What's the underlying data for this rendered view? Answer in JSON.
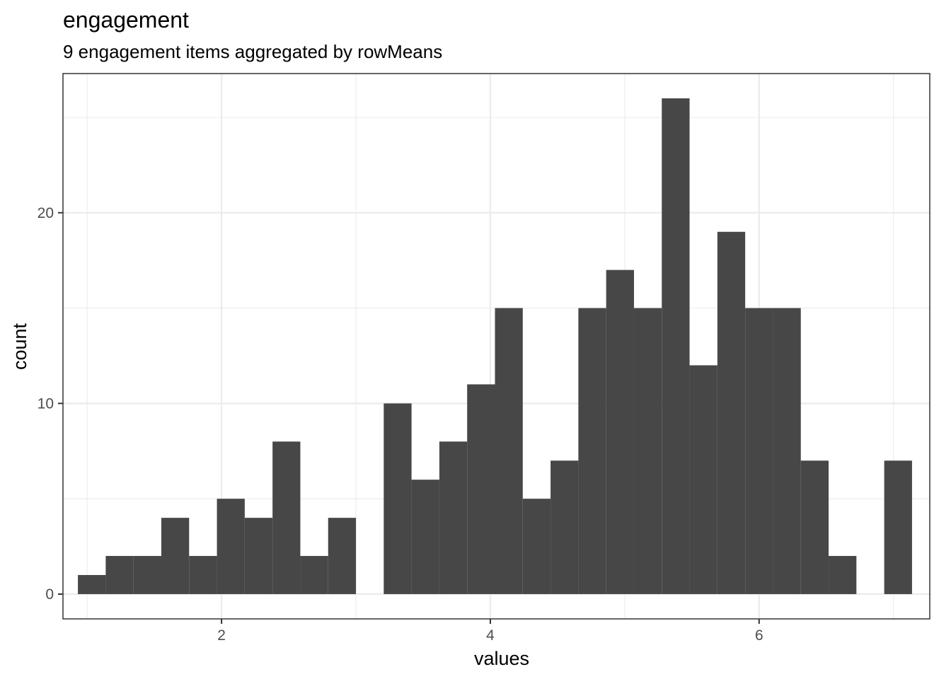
{
  "chart_data": {
    "type": "histogram",
    "title": "engagement",
    "subtitle": "9 engagement items aggregated by rowMeans",
    "xlabel": "values",
    "ylabel": "count",
    "xlim": [
      0.82,
      7.27
    ],
    "ylim": [
      -1.3,
      27.3
    ],
    "x_ticks": [
      2,
      4,
      6
    ],
    "y_ticks": [
      0,
      10,
      20
    ],
    "x_minor": [
      1,
      3,
      5,
      7
    ],
    "y_minor": [
      5,
      15,
      25
    ],
    "grid": true,
    "bin_width": 0.2069,
    "bins": [
      {
        "x": 1.0345,
        "count": 1
      },
      {
        "x": 1.2414,
        "count": 2
      },
      {
        "x": 1.4483,
        "count": 2
      },
      {
        "x": 1.6552,
        "count": 4
      },
      {
        "x": 1.8621,
        "count": 2
      },
      {
        "x": 2.069,
        "count": 5
      },
      {
        "x": 2.2759,
        "count": 4
      },
      {
        "x": 2.4828,
        "count": 8
      },
      {
        "x": 2.6897,
        "count": 2
      },
      {
        "x": 2.8966,
        "count": 4
      },
      {
        "x": 3.1034,
        "count": 0
      },
      {
        "x": 3.3103,
        "count": 10
      },
      {
        "x": 3.5172,
        "count": 6
      },
      {
        "x": 3.7241,
        "count": 8
      },
      {
        "x": 3.931,
        "count": 11
      },
      {
        "x": 4.1379,
        "count": 15
      },
      {
        "x": 4.3448,
        "count": 5
      },
      {
        "x": 4.5517,
        "count": 7
      },
      {
        "x": 4.7586,
        "count": 15
      },
      {
        "x": 4.9655,
        "count": 17
      },
      {
        "x": 5.1724,
        "count": 15
      },
      {
        "x": 5.3793,
        "count": 26
      },
      {
        "x": 5.5862,
        "count": 12
      },
      {
        "x": 5.7931,
        "count": 19
      },
      {
        "x": 6.0,
        "count": 15
      },
      {
        "x": 6.2069,
        "count": 15
      },
      {
        "x": 6.4138,
        "count": 7
      },
      {
        "x": 6.6207,
        "count": 2
      },
      {
        "x": 6.8276,
        "count": 0
      },
      {
        "x": 7.0345,
        "count": 7
      }
    ]
  }
}
